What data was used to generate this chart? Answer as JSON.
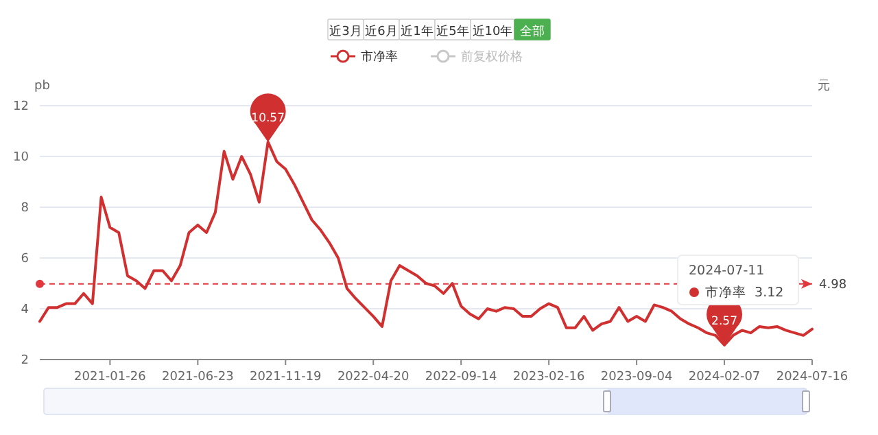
{
  "chart_data": {
    "type": "line",
    "ylabel": "pb",
    "y2label": "元",
    "categories": [
      null,
      null,
      null,
      null,
      null,
      null,
      null,
      null,
      "2021-01-26",
      null,
      null,
      null,
      null,
      null,
      null,
      null,
      null,
      null,
      "2021-06-23",
      null,
      null,
      null,
      null,
      null,
      null,
      null,
      null,
      null,
      "2021-11-19",
      null,
      null,
      null,
      null,
      null,
      null,
      null,
      null,
      null,
      "2022-04-20",
      null,
      null,
      null,
      null,
      null,
      null,
      null,
      null,
      null,
      "2022-09-14",
      null,
      null,
      null,
      null,
      null,
      null,
      null,
      null,
      null,
      "2023-02-16",
      null,
      null,
      null,
      null,
      null,
      null,
      null,
      null,
      null,
      "2023-09-04",
      null,
      null,
      null,
      null,
      null,
      null,
      null,
      null,
      null,
      "2024-02-07",
      null,
      null,
      null,
      null,
      null,
      null,
      null,
      null,
      null,
      "2024-07-16"
    ],
    "series": [
      {
        "name": "市净率",
        "color": "#d0302f",
        "values": [
          3.5,
          4.05,
          4.05,
          4.2,
          4.2,
          4.6,
          4.2,
          8.4,
          7.2,
          7.0,
          5.3,
          5.1,
          4.8,
          5.5,
          5.5,
          5.1,
          5.7,
          7.0,
          7.3,
          7.0,
          7.8,
          10.2,
          9.1,
          10.0,
          9.3,
          8.2,
          10.57,
          9.8,
          9.5,
          8.9,
          8.2,
          7.5,
          7.1,
          6.6,
          6.0,
          4.8,
          4.4,
          4.05,
          3.7,
          3.3,
          5.1,
          5.7,
          5.5,
          5.3,
          5.0,
          4.9,
          4.6,
          5.0,
          4.1,
          3.8,
          3.6,
          4.0,
          3.9,
          4.05,
          4.0,
          3.7,
          3.7,
          4.0,
          4.2,
          4.05,
          3.25,
          3.25,
          3.7,
          3.15,
          3.4,
          3.5,
          4.05,
          3.5,
          3.7,
          3.5,
          4.15,
          4.05,
          3.9,
          3.6,
          3.4,
          3.25,
          3.05,
          2.95,
          2.57,
          2.95,
          3.15,
          3.05,
          3.3,
          3.25,
          3.3,
          3.15,
          3.05,
          2.95,
          3.2
        ]
      },
      {
        "name": "前复权价格",
        "color": "#c8c8c8",
        "values": [
          null,
          null,
          null,
          null,
          null,
          null,
          null,
          null,
          null,
          null,
          null,
          null,
          null,
          null,
          null,
          null,
          null,
          null,
          null,
          null,
          null,
          null,
          null,
          null,
          null,
          null,
          null,
          null,
          null,
          null,
          null,
          null,
          null,
          null,
          null,
          null,
          null,
          null,
          null,
          null,
          null,
          null,
          null,
          null,
          null,
          null,
          null,
          null,
          null,
          null,
          null,
          null,
          null,
          null,
          null,
          null,
          null,
          null,
          null,
          null,
          null,
          null,
          null,
          null,
          null,
          null,
          null,
          null,
          null,
          null,
          null,
          null,
          null,
          null,
          null,
          null,
          null,
          null,
          null,
          null,
          null,
          null,
          null,
          null,
          null,
          null,
          null,
          null,
          null
        ]
      }
    ],
    "ylim": [
      2,
      12
    ],
    "yticks": [
      2,
      4,
      6,
      8,
      10,
      12
    ],
    "grid": "y",
    "legend": "top",
    "marker": "none",
    "line_style": "solid",
    "ref_lines": [
      {
        "axis": "y",
        "value": 4.98,
        "label": "4.98",
        "color": "#e0383e",
        "line_style": "dashed"
      }
    ],
    "annotations": [
      "近3月",
      "近6月",
      "近1年",
      "近5年",
      "近10年",
      "全部",
      "2024-07-11",
      "市净率  3.12",
      {
        "text": "10.57",
        "y": 10.57
      },
      {
        "text": "2.57",
        "y": 2.57
      }
    ]
  }
}
